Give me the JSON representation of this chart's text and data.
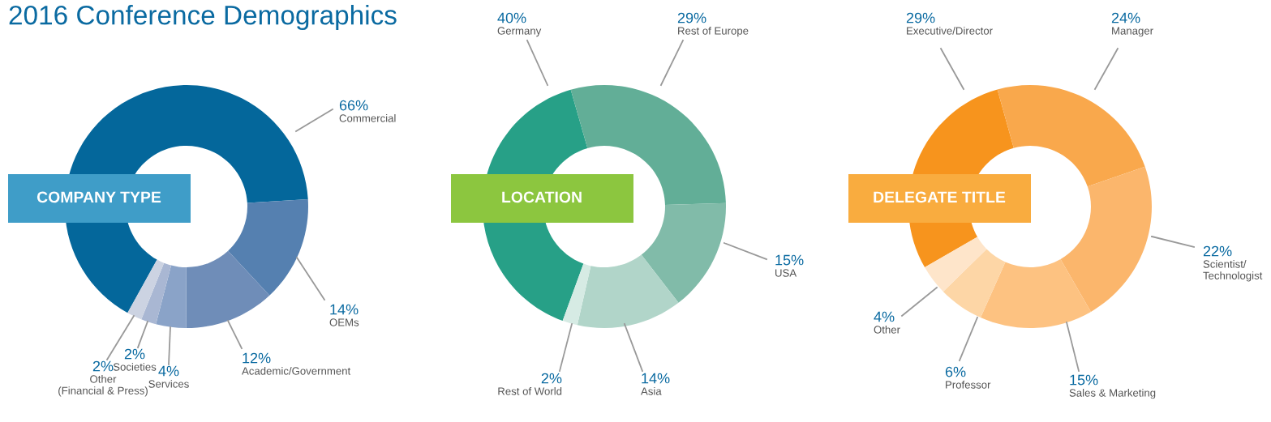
{
  "chart_data": [
    {
      "type": "donut",
      "title": "2016 Conference Demographics",
      "subtitle": "COMPANY TYPE",
      "categories": [
        "Commercial",
        "OEMs",
        "Academic/Government",
        "Services",
        "Societies",
        "Other\n(Financial & Press)"
      ],
      "values": [
        66,
        14,
        12,
        4,
        2,
        2
      ],
      "value_labels": [
        "66%",
        "14%",
        "12%",
        "4%",
        "2%",
        "2%"
      ],
      "colors": [
        "#04679b",
        "#5580b0",
        "#6f8db8",
        "#8aa3c8",
        "#a9b7d3",
        "#ccd3e2"
      ]
    },
    {
      "type": "donut",
      "subtitle": "LOCATION",
      "categories": [
        "Germany",
        "Rest of Europe",
        "USA",
        "Asia",
        "Rest of World"
      ],
      "values": [
        40,
        29,
        15,
        14,
        2
      ],
      "value_labels": [
        "40%",
        "29%",
        "15%",
        "14%",
        "2%"
      ],
      "colors": [
        "#27a087",
        "#62ae97",
        "#81bba9",
        "#b1d5c9",
        "#d6ebe4"
      ]
    },
    {
      "type": "donut",
      "subtitle": "DELEGATE TITLE",
      "categories": [
        "Executive/Director",
        "Manager",
        "Scientist/\nTechnologist",
        "Sales & Marketing",
        "Professor",
        "Other"
      ],
      "values": [
        29,
        24,
        22,
        15,
        6,
        4
      ],
      "value_labels": [
        "29%",
        "24%",
        "22%",
        "15%",
        "6%",
        "4%"
      ],
      "colors": [
        "#f7941d",
        "#f9a84c",
        "#fbb66c",
        "#fdc281",
        "#fdd6a6",
        "#fee5ca"
      ]
    }
  ]
}
